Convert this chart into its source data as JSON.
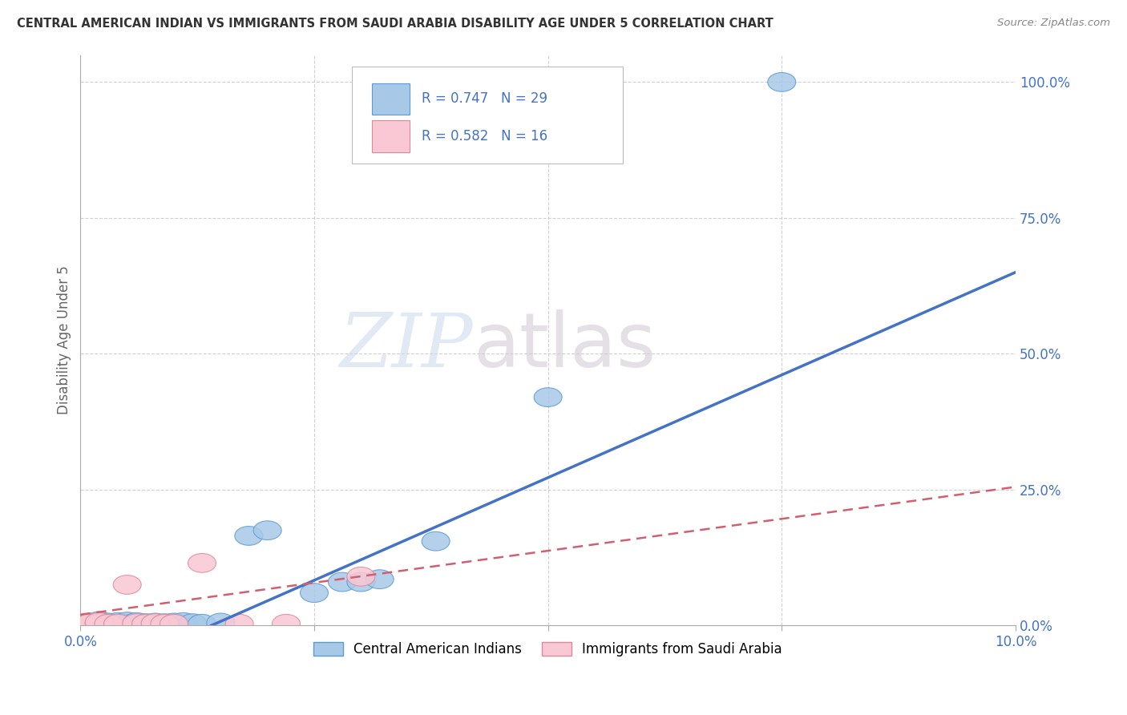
{
  "title": "CENTRAL AMERICAN INDIAN VS IMMIGRANTS FROM SAUDI ARABIA DISABILITY AGE UNDER 5 CORRELATION CHART",
  "source": "Source: ZipAtlas.com",
  "ylabel": "Disability Age Under 5",
  "blue_label": "Central American Indians",
  "pink_label": "Immigrants from Saudi Arabia",
  "blue_R": "0.747",
  "blue_N": "29",
  "pink_R": "0.582",
  "pink_N": "16",
  "watermark_zip": "ZIP",
  "watermark_atlas": "atlas",
  "blue_color": "#a8c8e8",
  "blue_edge_color": "#5b9bd5",
  "blue_line_color": "#4472c4",
  "pink_color": "#f9c8d4",
  "pink_edge_color": "#e08898",
  "pink_line_color": "#d06070",
  "right_tick_color": "#4472c4",
  "xtick_color": "#4472c4",
  "blue_points_x": [
    0.001,
    0.001,
    0.002,
    0.002,
    0.003,
    0.003,
    0.004,
    0.004,
    0.005,
    0.005,
    0.006,
    0.006,
    0.007,
    0.008,
    0.009,
    0.01,
    0.011,
    0.012,
    0.013,
    0.015,
    0.018,
    0.02,
    0.025,
    0.028,
    0.03,
    0.032,
    0.038,
    0.05,
    0.075
  ],
  "blue_points_y": [
    0.002,
    0.005,
    0.003,
    0.008,
    0.002,
    0.005,
    0.003,
    0.006,
    0.003,
    0.007,
    0.003,
    0.006,
    0.004,
    0.005,
    0.004,
    0.005,
    0.006,
    0.004,
    0.003,
    0.005,
    0.165,
    0.175,
    0.06,
    0.08,
    0.08,
    0.085,
    0.155,
    0.42,
    1.0
  ],
  "pink_points_x": [
    0.001,
    0.001,
    0.002,
    0.002,
    0.003,
    0.004,
    0.005,
    0.006,
    0.007,
    0.008,
    0.009,
    0.01,
    0.013,
    0.017,
    0.022,
    0.03
  ],
  "pink_points_y": [
    0.002,
    0.004,
    0.003,
    0.006,
    0.003,
    0.003,
    0.075,
    0.004,
    0.003,
    0.004,
    0.003,
    0.003,
    0.115,
    0.003,
    0.003,
    0.09
  ],
  "blue_line_x0": 0.014,
  "blue_line_y0": 0.0,
  "blue_line_x1": 0.1,
  "blue_line_y1": 0.65,
  "pink_line_x0": 0.0,
  "pink_line_y0": 0.02,
  "pink_line_x1": 0.1,
  "pink_line_y1": 0.255,
  "xmin": 0.0,
  "xmax": 0.1,
  "ymin": 0.0,
  "ymax": 1.05,
  "right_yticks": [
    0.0,
    0.25,
    0.5,
    0.75,
    1.0
  ],
  "right_ytick_labels": [
    "0.0%",
    "25.0%",
    "50.0%",
    "75.0%",
    "100.0%"
  ],
  "grid_color": "#d0d0d0",
  "background_color": "#ffffff",
  "legend_text_color": "#333333",
  "legend_number_color": "#4472c4"
}
